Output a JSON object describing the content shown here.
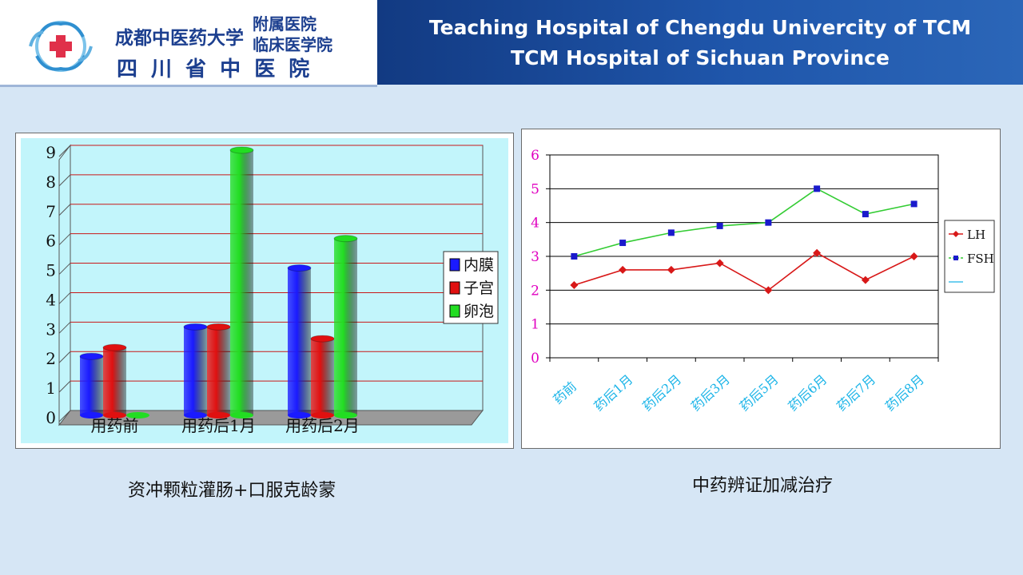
{
  "header": {
    "cn_name_line1": "成都中医药大学",
    "cn_name_affil_1": "附属医院",
    "cn_name_affil_2": "临床医学院",
    "cn_name_line2": "四 川 省 中 医 院",
    "title_line1": "Teaching Hospital of Chengdu Univercity of TCM",
    "title_line2": "TCM Hospital of Sichuan Province"
  },
  "left_caption": "资冲颗粒灌肠+口服克龄蒙",
  "right_caption": "中药辨证加减治疗",
  "colors": {
    "header_blue": "#1f56ab",
    "bar_blue": "#1a1aff",
    "bar_red": "#e01010",
    "bar_green": "#22dd22",
    "line_lh": "#d81818",
    "line_fsh": "#33cc33",
    "marker_fsh": "#1a1acc"
  },
  "chart_data": [
    {
      "type": "bar",
      "categories": [
        "用药前",
        "用药后1月",
        "用药后2月"
      ],
      "series": [
        {
          "name": "内膜",
          "values": [
            2,
            3,
            5
          ]
        },
        {
          "name": "子宫",
          "values": [
            2.3,
            3,
            2.6
          ]
        },
        {
          "name": "卵泡",
          "values": [
            0,
            9,
            6
          ]
        }
      ],
      "ylim": [
        0,
        9
      ],
      "yticks": [
        "0",
        "1",
        "2",
        "3",
        "4",
        "5",
        "6",
        "7",
        "8",
        "9"
      ],
      "grid": true,
      "legend": "right"
    },
    {
      "type": "line",
      "categories": [
        "药前",
        "药后1月",
        "药后2月",
        "药后3月",
        "药后5月",
        "药后6月",
        "药后7月",
        "药后8月"
      ],
      "series": [
        {
          "name": "LH",
          "values": [
            2.15,
            2.6,
            2.6,
            2.8,
            2.0,
            3.1,
            2.3,
            3.0
          ]
        },
        {
          "name": "FSH",
          "values": [
            3.0,
            3.4,
            3.7,
            3.9,
            4.0,
            5.0,
            4.25,
            4.55
          ]
        }
      ],
      "legend_labels": [
        "LH",
        "FSH",
        ""
      ],
      "ylim": [
        0,
        6
      ],
      "yticks": [
        "0",
        "1",
        "2",
        "3",
        "4",
        "5",
        "6"
      ],
      "grid": true,
      "legend": "right"
    }
  ]
}
